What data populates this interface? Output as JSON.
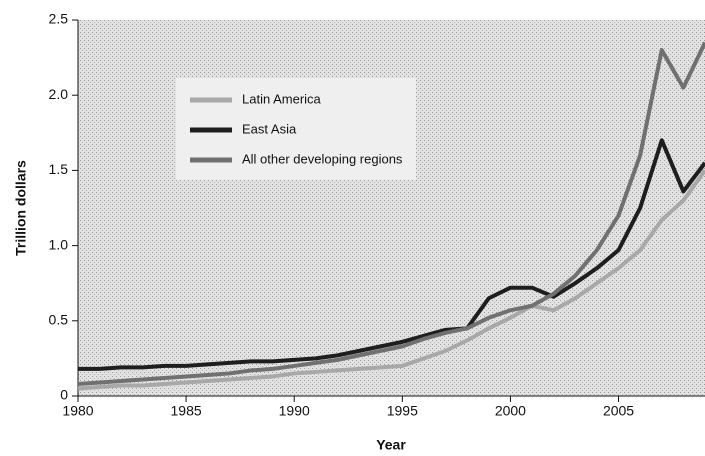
{
  "chart_data": {
    "type": "line",
    "xlabel": "Year",
    "ylabel": "Trillion dollars",
    "x": [
      1980,
      1981,
      1982,
      1983,
      1984,
      1985,
      1986,
      1987,
      1988,
      1989,
      1990,
      1991,
      1992,
      1993,
      1994,
      1995,
      1996,
      1997,
      1998,
      1999,
      2000,
      2001,
      2002,
      2003,
      2004,
      2005,
      2006,
      2007,
      2008,
      2009
    ],
    "series": [
      {
        "name": "Latin America",
        "color": "#a8a8a8",
        "values": [
          0.05,
          0.06,
          0.07,
          0.07,
          0.08,
          0.09,
          0.1,
          0.11,
          0.12,
          0.13,
          0.15,
          0.16,
          0.17,
          0.18,
          0.19,
          0.2,
          0.25,
          0.3,
          0.37,
          0.45,
          0.52,
          0.6,
          0.57,
          0.65,
          0.75,
          0.85,
          0.97,
          1.17,
          1.3,
          1.5
        ]
      },
      {
        "name": "East Asia",
        "color": "#1e1e1e",
        "values": [
          0.18,
          0.18,
          0.19,
          0.19,
          0.2,
          0.2,
          0.21,
          0.22,
          0.23,
          0.23,
          0.24,
          0.25,
          0.27,
          0.3,
          0.33,
          0.36,
          0.4,
          0.44,
          0.45,
          0.65,
          0.72,
          0.72,
          0.66,
          0.75,
          0.85,
          0.97,
          1.25,
          1.7,
          1.36,
          1.55
        ]
      },
      {
        "name": "All other developing regions",
        "color": "#707070",
        "values": [
          0.08,
          0.09,
          0.1,
          0.11,
          0.12,
          0.13,
          0.14,
          0.15,
          0.17,
          0.18,
          0.2,
          0.22,
          0.24,
          0.27,
          0.3,
          0.33,
          0.38,
          0.42,
          0.45,
          0.52,
          0.57,
          0.6,
          0.68,
          0.8,
          0.97,
          1.2,
          1.6,
          2.3,
          2.05,
          2.35
        ]
      }
    ],
    "xlim": [
      1980,
      2009
    ],
    "ylim": [
      0,
      2.5
    ],
    "xticks": [
      1980,
      1985,
      1990,
      1995,
      2000,
      2005
    ],
    "yticks": [
      0,
      0.5,
      {
        "value": 1,
        "label": "1.0"
      },
      1.5,
      {
        "value": 2,
        "label": "2.0"
      },
      2.5
    ],
    "grid": false
  }
}
